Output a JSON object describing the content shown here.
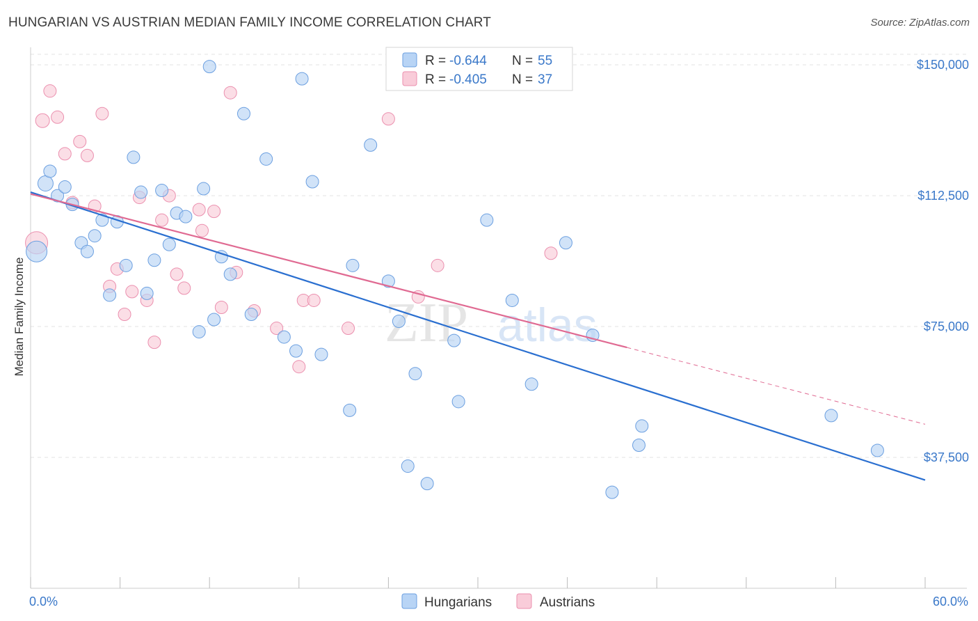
{
  "title": "HUNGARIAN VS AUSTRIAN MEDIAN FAMILY INCOME CORRELATION CHART",
  "source": "Source: ZipAtlas.com",
  "watermark": {
    "zip": "ZIP",
    "atlas": "atlas"
  },
  "colors": {
    "hungarians_fill": "#b8d4f5",
    "hungarians_stroke": "#6b9fe0",
    "hungarians_line": "#2a6fd0",
    "austrians_fill": "#f9ccd9",
    "austrians_stroke": "#eb8fae",
    "austrians_line": "#e06a92",
    "accent_text": "#3a78c9"
  },
  "legend": {
    "r_label": "R =",
    "n_label": "N =",
    "items": [
      {
        "name": "Hungarians",
        "r": "-0.644",
        "n": "55"
      },
      {
        "name": "Austrians",
        "r": "-0.405",
        "n": "37"
      }
    ]
  },
  "chart_data": {
    "type": "scatter",
    "ylabel": "Median Family Income",
    "xlim": [
      0,
      60
    ],
    "ylim": [
      0,
      157000
    ],
    "x_tick_labels": [
      "0.0%",
      "60.0%"
    ],
    "y_ticks": [
      37500,
      75000,
      112500,
      150000
    ],
    "y_tick_labels": [
      "$37,500",
      "$75,000",
      "$112,500",
      "$150,000"
    ],
    "grid": true,
    "series": [
      {
        "name": "Hungarians",
        "trend": {
          "x": [
            0,
            60
          ],
          "y": [
            113500,
            31000
          ]
        },
        "points": [
          [
            0.4,
            96500,
            15
          ],
          [
            1.0,
            116000,
            11
          ],
          [
            1.3,
            119500,
            9
          ],
          [
            1.8,
            112500,
            9
          ],
          [
            2.3,
            115000,
            9
          ],
          [
            2.8,
            110000,
            9
          ],
          [
            3.4,
            99000,
            9
          ],
          [
            3.8,
            96500,
            9
          ],
          [
            4.3,
            101000,
            9
          ],
          [
            4.8,
            105500,
            9
          ],
          [
            5.3,
            84000,
            9
          ],
          [
            5.8,
            105000,
            9
          ],
          [
            6.4,
            92500,
            9
          ],
          [
            6.9,
            123500,
            9
          ],
          [
            7.4,
            113500,
            9
          ],
          [
            7.8,
            84500,
            9
          ],
          [
            8.3,
            94000,
            9
          ],
          [
            8.8,
            114000,
            9
          ],
          [
            9.3,
            98500,
            9
          ],
          [
            9.8,
            107500,
            9
          ],
          [
            10.4,
            106500,
            9
          ],
          [
            11.3,
            73500,
            9
          ],
          [
            11.6,
            114500,
            9
          ],
          [
            12.0,
            149500,
            9
          ],
          [
            12.3,
            77000,
            9
          ],
          [
            12.8,
            95000,
            9
          ],
          [
            13.4,
            90000,
            9
          ],
          [
            14.3,
            136000,
            9
          ],
          [
            14.8,
            78500,
            9
          ],
          [
            15.8,
            123000,
            9
          ],
          [
            17.0,
            72000,
            9
          ],
          [
            17.8,
            68000,
            9
          ],
          [
            18.2,
            146000,
            9
          ],
          [
            18.9,
            116500,
            9
          ],
          [
            19.5,
            67000,
            9
          ],
          [
            21.4,
            51000,
            9
          ],
          [
            21.6,
            92500,
            9
          ],
          [
            22.8,
            127000,
            9
          ],
          [
            24.0,
            88000,
            9
          ],
          [
            24.7,
            76500,
            9
          ],
          [
            25.3,
            35000,
            9
          ],
          [
            25.8,
            61500,
            9
          ],
          [
            26.6,
            30000,
            9
          ],
          [
            28.4,
            71000,
            9
          ],
          [
            28.7,
            53500,
            9
          ],
          [
            30.6,
            105500,
            9
          ],
          [
            32.3,
            82500,
            9
          ],
          [
            33.6,
            58500,
            9
          ],
          [
            35.9,
            99000,
            9
          ],
          [
            37.7,
            72500,
            9
          ],
          [
            39.0,
            27500,
            9
          ],
          [
            40.8,
            41000,
            9
          ],
          [
            41.0,
            46500,
            9
          ],
          [
            53.7,
            49500,
            9
          ],
          [
            56.8,
            39500,
            9
          ]
        ]
      },
      {
        "name": "Austrians",
        "trend": {
          "x": [
            0,
            40
          ],
          "y": [
            113000,
            69000
          ]
        },
        "trend_dashed": {
          "x": [
            40,
            60
          ],
          "y": [
            69000,
            47000
          ]
        },
        "points": [
          [
            0.4,
            99000,
            16
          ],
          [
            0.8,
            134000,
            10
          ],
          [
            1.3,
            142500,
            9
          ],
          [
            1.8,
            135000,
            9
          ],
          [
            2.3,
            124500,
            9
          ],
          [
            2.8,
            110500,
            9
          ],
          [
            3.3,
            128000,
            9
          ],
          [
            3.8,
            124000,
            9
          ],
          [
            4.3,
            109500,
            9
          ],
          [
            4.8,
            136000,
            9
          ],
          [
            5.3,
            86500,
            9
          ],
          [
            5.8,
            91500,
            9
          ],
          [
            6.3,
            78500,
            9
          ],
          [
            6.8,
            85000,
            9
          ],
          [
            7.3,
            112000,
            9
          ],
          [
            7.8,
            82500,
            9
          ],
          [
            8.3,
            70500,
            9
          ],
          [
            8.8,
            105500,
            9
          ],
          [
            9.3,
            112500,
            9
          ],
          [
            9.8,
            90000,
            9
          ],
          [
            10.3,
            86000,
            9
          ],
          [
            11.3,
            108500,
            9
          ],
          [
            11.5,
            102500,
            9
          ],
          [
            12.3,
            108000,
            9
          ],
          [
            12.8,
            80500,
            9
          ],
          [
            13.4,
            142000,
            9
          ],
          [
            13.8,
            90500,
            9
          ],
          [
            15.0,
            79500,
            9
          ],
          [
            16.5,
            74500,
            9
          ],
          [
            18.0,
            63500,
            9
          ],
          [
            18.3,
            82500,
            9
          ],
          [
            19.0,
            82500,
            9
          ],
          [
            21.3,
            74500,
            9
          ],
          [
            24.0,
            134500,
            9
          ],
          [
            26.0,
            83500,
            9
          ],
          [
            27.3,
            92500,
            9
          ],
          [
            34.9,
            96000,
            9
          ]
        ]
      }
    ]
  }
}
